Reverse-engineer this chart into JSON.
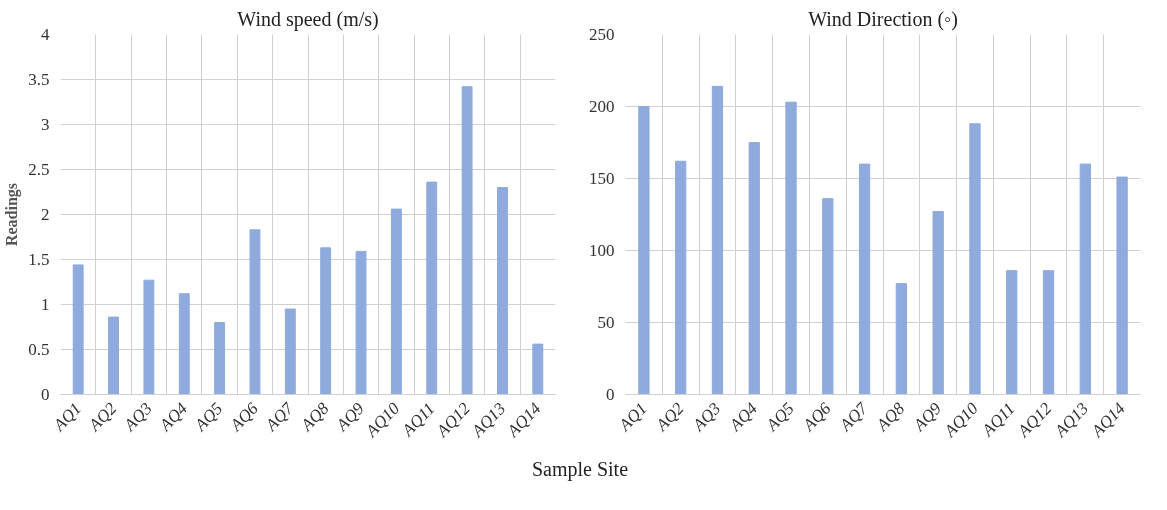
{
  "chart_data": [
    {
      "type": "bar",
      "title": "Wind speed (m/s)",
      "ylabel": "Readings",
      "xlabel": "Sample Site",
      "categories": [
        "AQ1",
        "AQ2",
        "AQ3",
        "AQ4",
        "AQ5",
        "AQ6",
        "AQ7",
        "AQ8",
        "AQ9",
        "AQ10",
        "AQ11",
        "AQ12",
        "AQ13",
        "AQ14"
      ],
      "values": [
        1.44,
        0.86,
        1.27,
        1.12,
        0.8,
        1.83,
        0.95,
        1.63,
        1.59,
        2.06,
        2.36,
        3.42,
        2.3,
        0.56
      ],
      "color": "#8faadc",
      "ylim": [
        0,
        4
      ],
      "yticks": [
        0,
        0.5,
        1,
        1.5,
        2,
        2.5,
        3,
        3.5,
        4
      ],
      "grid": true
    },
    {
      "type": "bar",
      "title": "Wind Direction (◦)",
      "categories": [
        "AQ1",
        "AQ2",
        "AQ3",
        "AQ4",
        "AQ5",
        "AQ6",
        "AQ7",
        "AQ8",
        "AQ9",
        "AQ10",
        "AQ11",
        "AQ12",
        "AQ13",
        "AQ14"
      ],
      "values": [
        200,
        162,
        214,
        175,
        203,
        136,
        160,
        77,
        127,
        188,
        86,
        86,
        160,
        151
      ],
      "color": "#8faadc",
      "ylim": [
        0,
        250
      ],
      "yticks": [
        0,
        50,
        100,
        150,
        200,
        250
      ],
      "grid": true
    }
  ]
}
